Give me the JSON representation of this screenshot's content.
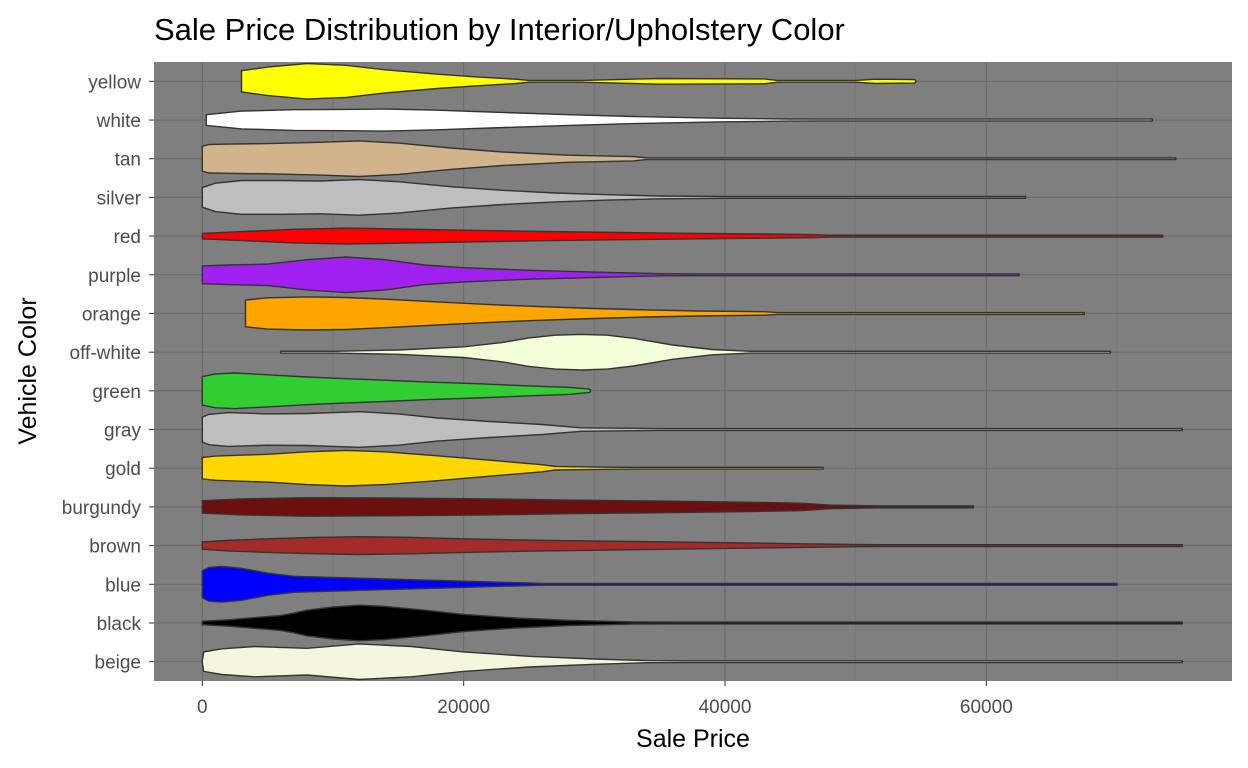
{
  "chart_data": {
    "type": "violin",
    "title": "Sale Price Distribution by Interior/Upholstery Color",
    "xlabel": "Sale Price",
    "ylabel": "Vehicle Color",
    "xlim": [
      -3700,
      78800
    ],
    "x_ticks": [
      0,
      20000,
      40000,
      60000
    ],
    "x_tick_labels": [
      "0",
      "20000",
      "40000",
      "60000"
    ],
    "grid": true,
    "panel_background": "#7f7f7f",
    "outline_color": "#333333",
    "categories": [
      "beige",
      "black",
      "blue",
      "brown",
      "burgundy",
      "gold",
      "gray",
      "green",
      "off-white",
      "orange",
      "purple",
      "red",
      "silver",
      "tan",
      "white",
      "yellow"
    ],
    "series": [
      {
        "name": "beige",
        "color": "#f5f5dc",
        "profile": [
          [
            0,
            0.0
          ],
          [
            100,
            0.55
          ],
          [
            1500,
            0.72
          ],
          [
            4000,
            0.85
          ],
          [
            8000,
            0.75
          ],
          [
            12000,
            1.0
          ],
          [
            16000,
            0.85
          ],
          [
            20000,
            0.55
          ],
          [
            25000,
            0.3
          ],
          [
            30000,
            0.15
          ],
          [
            34000,
            0.06
          ],
          [
            37000,
            0.02
          ],
          [
            46000,
            0.02
          ],
          [
            75000,
            0.01
          ]
        ]
      },
      {
        "name": "black",
        "color": "#000000",
        "profile": [
          [
            0,
            0.1
          ],
          [
            2000,
            0.18
          ],
          [
            4000,
            0.3
          ],
          [
            6000,
            0.42
          ],
          [
            7000,
            0.55
          ],
          [
            8000,
            0.72
          ],
          [
            10000,
            0.9
          ],
          [
            12000,
            1.0
          ],
          [
            14000,
            0.93
          ],
          [
            17000,
            0.72
          ],
          [
            20000,
            0.48
          ],
          [
            24000,
            0.28
          ],
          [
            28000,
            0.15
          ],
          [
            33000,
            0.06
          ],
          [
            36000,
            0.03
          ],
          [
            52000,
            0.02
          ],
          [
            75000,
            0.01
          ]
        ]
      },
      {
        "name": "blue",
        "color": "#0000ff",
        "profile": [
          [
            0,
            0.75
          ],
          [
            500,
            0.95
          ],
          [
            1500,
            1.0
          ],
          [
            3000,
            0.9
          ],
          [
            5000,
            0.62
          ],
          [
            7000,
            0.45
          ],
          [
            10000,
            0.38
          ],
          [
            14000,
            0.3
          ],
          [
            18000,
            0.22
          ],
          [
            22000,
            0.13
          ],
          [
            26000,
            0.04
          ],
          [
            30000,
            0.02
          ],
          [
            43000,
            0.02
          ],
          [
            70000,
            0.01
          ]
        ]
      },
      {
        "name": "brown",
        "color": "#a52a2a",
        "profile": [
          [
            0,
            0.2
          ],
          [
            2000,
            0.3
          ],
          [
            5000,
            0.38
          ],
          [
            8000,
            0.45
          ],
          [
            12000,
            0.5
          ],
          [
            16000,
            0.46
          ],
          [
            20000,
            0.38
          ],
          [
            26000,
            0.3
          ],
          [
            32000,
            0.24
          ],
          [
            40000,
            0.16
          ],
          [
            46000,
            0.1
          ],
          [
            50000,
            0.06
          ],
          [
            52000,
            0.03
          ],
          [
            70000,
            0.02
          ],
          [
            75000,
            0.01
          ]
        ]
      },
      {
        "name": "burgundy",
        "color": "#6b0f0f",
        "profile": [
          [
            0,
            0.35
          ],
          [
            3000,
            0.45
          ],
          [
            8000,
            0.52
          ],
          [
            14000,
            0.5
          ],
          [
            22000,
            0.45
          ],
          [
            28000,
            0.38
          ],
          [
            36000,
            0.32
          ],
          [
            42000,
            0.26
          ],
          [
            46000,
            0.2
          ],
          [
            48000,
            0.1
          ],
          [
            52000,
            0.05
          ],
          [
            59000,
            0.02
          ]
        ]
      },
      {
        "name": "gold",
        "color": "#ffd700",
        "profile": [
          [
            0,
            0.6
          ],
          [
            1000,
            0.68
          ],
          [
            5000,
            0.78
          ],
          [
            8000,
            0.92
          ],
          [
            11000,
            1.0
          ],
          [
            14000,
            0.92
          ],
          [
            18000,
            0.7
          ],
          [
            22000,
            0.45
          ],
          [
            26000,
            0.2
          ],
          [
            27000,
            0.1
          ],
          [
            31000,
            0.06
          ],
          [
            33000,
            0.03
          ],
          [
            47500,
            0.02
          ]
        ]
      },
      {
        "name": "gray",
        "color": "#bebebe",
        "profile": [
          [
            0,
            0.7
          ],
          [
            500,
            0.85
          ],
          [
            2000,
            0.95
          ],
          [
            5000,
            0.88
          ],
          [
            8000,
            0.9
          ],
          [
            12000,
            1.0
          ],
          [
            15000,
            0.88
          ],
          [
            18000,
            0.65
          ],
          [
            22000,
            0.45
          ],
          [
            26000,
            0.28
          ],
          [
            29000,
            0.1
          ],
          [
            35000,
            0.03
          ],
          [
            75000,
            0.01
          ]
        ]
      },
      {
        "name": "green",
        "color": "#32cd32",
        "profile": [
          [
            0,
            0.8
          ],
          [
            1000,
            0.95
          ],
          [
            2500,
            1.0
          ],
          [
            5000,
            0.9
          ],
          [
            8000,
            0.78
          ],
          [
            11000,
            0.68
          ],
          [
            14000,
            0.6
          ],
          [
            17000,
            0.5
          ],
          [
            21000,
            0.4
          ],
          [
            25000,
            0.28
          ],
          [
            28000,
            0.2
          ],
          [
            29600,
            0.1
          ],
          [
            29700,
            0.0
          ]
        ]
      },
      {
        "name": "off-white",
        "color": "#f3ffd9",
        "profile": [
          [
            6000,
            0.02
          ],
          [
            10000,
            0.05
          ],
          [
            15000,
            0.12
          ],
          [
            20000,
            0.3
          ],
          [
            23000,
            0.55
          ],
          [
            25000,
            0.8
          ],
          [
            27000,
            0.95
          ],
          [
            29000,
            1.0
          ],
          [
            31000,
            0.95
          ],
          [
            33000,
            0.78
          ],
          [
            36000,
            0.4
          ],
          [
            39000,
            0.15
          ],
          [
            42000,
            0.05
          ],
          [
            50000,
            0.03
          ],
          [
            69500,
            0.02
          ]
        ]
      },
      {
        "name": "orange",
        "color": "#ffa500",
        "profile": [
          [
            3300,
            0.75
          ],
          [
            5000,
            0.88
          ],
          [
            8000,
            0.93
          ],
          [
            11000,
            0.9
          ],
          [
            14000,
            0.8
          ],
          [
            18000,
            0.65
          ],
          [
            22000,
            0.5
          ],
          [
            26000,
            0.38
          ],
          [
            30000,
            0.28
          ],
          [
            34000,
            0.2
          ],
          [
            38000,
            0.14
          ],
          [
            43000,
            0.1
          ],
          [
            44000,
            0.05
          ],
          [
            55000,
            0.03
          ],
          [
            67500,
            0.02
          ]
        ]
      },
      {
        "name": "purple",
        "color": "#a020f0",
        "profile": [
          [
            0,
            0.5
          ],
          [
            2000,
            0.55
          ],
          [
            5000,
            0.6
          ],
          [
            8000,
            0.85
          ],
          [
            11000,
            1.0
          ],
          [
            14000,
            0.85
          ],
          [
            17000,
            0.55
          ],
          [
            20000,
            0.4
          ],
          [
            25000,
            0.25
          ],
          [
            30000,
            0.15
          ],
          [
            35000,
            0.06
          ],
          [
            38000,
            0.04
          ],
          [
            43000,
            0.05
          ],
          [
            50000,
            0.03
          ],
          [
            62500,
            0.02
          ]
        ]
      },
      {
        "name": "red",
        "color": "#ff0000",
        "profile": [
          [
            0,
            0.15
          ],
          [
            3000,
            0.25
          ],
          [
            7000,
            0.38
          ],
          [
            11000,
            0.45
          ],
          [
            15000,
            0.4
          ],
          [
            20000,
            0.33
          ],
          [
            26000,
            0.26
          ],
          [
            32000,
            0.2
          ],
          [
            38000,
            0.15
          ],
          [
            43000,
            0.12
          ],
          [
            47000,
            0.08
          ],
          [
            48000,
            0.04
          ],
          [
            60000,
            0.03
          ],
          [
            73500,
            0.02
          ]
        ]
      },
      {
        "name": "silver",
        "color": "#bebebe",
        "profile": [
          [
            0,
            0.55
          ],
          [
            1000,
            0.8
          ],
          [
            3000,
            0.95
          ],
          [
            6000,
            0.95
          ],
          [
            9000,
            0.92
          ],
          [
            12000,
            1.0
          ],
          [
            15000,
            0.88
          ],
          [
            19000,
            0.6
          ],
          [
            23000,
            0.4
          ],
          [
            27000,
            0.25
          ],
          [
            31000,
            0.15
          ],
          [
            35000,
            0.08
          ],
          [
            40000,
            0.04
          ],
          [
            55000,
            0.03
          ],
          [
            63000,
            0.02
          ]
        ]
      },
      {
        "name": "tan",
        "color": "#d2b48c",
        "profile": [
          [
            0,
            0.7
          ],
          [
            500,
            0.8
          ],
          [
            2000,
            0.82
          ],
          [
            5000,
            0.85
          ],
          [
            9000,
            0.92
          ],
          [
            12000,
            1.0
          ],
          [
            15000,
            0.88
          ],
          [
            19000,
            0.6
          ],
          [
            23000,
            0.38
          ],
          [
            28000,
            0.2
          ],
          [
            33000,
            0.12
          ],
          [
            34000,
            0.05
          ],
          [
            41000,
            0.04
          ],
          [
            60000,
            0.02
          ],
          [
            74500,
            0.01
          ]
        ]
      },
      {
        "name": "white",
        "color": "#ffffff",
        "profile": [
          [
            300,
            0.3
          ],
          [
            3000,
            0.5
          ],
          [
            7000,
            0.58
          ],
          [
            11000,
            0.6
          ],
          [
            14000,
            0.62
          ],
          [
            18000,
            0.55
          ],
          [
            22000,
            0.45
          ],
          [
            28000,
            0.3
          ],
          [
            33000,
            0.2
          ],
          [
            40000,
            0.1
          ],
          [
            45000,
            0.06
          ],
          [
            47000,
            0.03
          ],
          [
            60000,
            0.02
          ],
          [
            72700,
            0.01
          ]
        ]
      },
      {
        "name": "yellow",
        "color": "#ffff00",
        "profile": [
          [
            3000,
            0.6
          ],
          [
            5000,
            0.8
          ],
          [
            8000,
            1.0
          ],
          [
            11000,
            0.9
          ],
          [
            14000,
            0.65
          ],
          [
            18000,
            0.4
          ],
          [
            21000,
            0.25
          ],
          [
            24000,
            0.12
          ],
          [
            25000,
            0.05
          ],
          [
            29000,
            0.04
          ],
          [
            35000,
            0.16
          ],
          [
            43000,
            0.14
          ],
          [
            44000,
            0.05
          ],
          [
            50000,
            0.04
          ],
          [
            51500,
            0.12
          ],
          [
            54500,
            0.1
          ],
          [
            54600,
            0.0
          ]
        ]
      }
    ]
  }
}
